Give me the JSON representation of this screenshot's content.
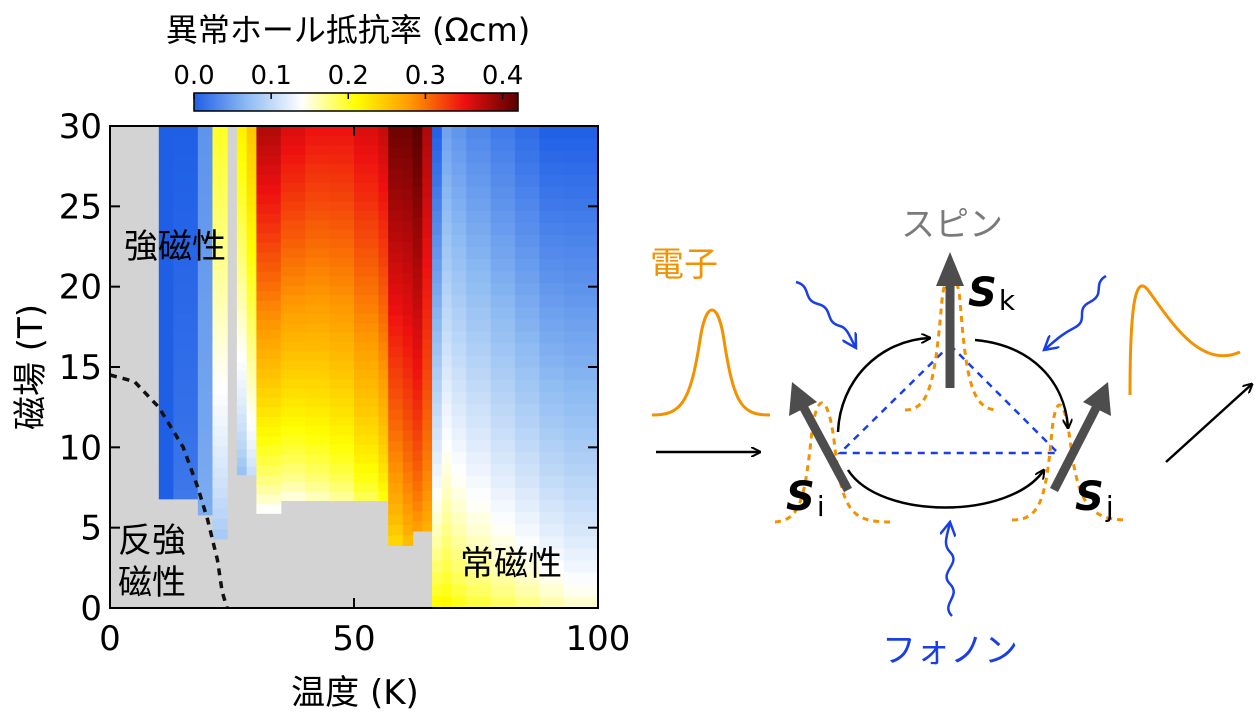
{
  "chart_data": [
    {
      "type": "heatmap",
      "colorbar": {
        "title": "異常ホール抵抗率 (Ωcm)",
        "ticks": [
          "0.0",
          "0.1",
          "0.2",
          "0.3",
          "0.4"
        ],
        "range": [
          0.0,
          0.42
        ],
        "colors": [
          "#1f5fe6",
          "#8fbcf2",
          "#ffffff",
          "#ffff00",
          "#ff9a00",
          "#ee1010",
          "#5a0000"
        ]
      },
      "xlabel": "温度 (K)",
      "ylabel": "磁場 (T)",
      "xlim": [
        0,
        100
      ],
      "ylim": [
        0,
        30
      ],
      "xticks": [
        "0",
        "50",
        "100"
      ],
      "yticks": [
        "0",
        "5",
        "10",
        "15",
        "20",
        "25",
        "30"
      ],
      "masked_color": "#d3d3d3",
      "columns": [
        {
          "t0": 0,
          "t1": 10,
          "hmin": 30,
          "v": [
            0,
            0
          ]
        },
        {
          "t0": 10,
          "t1": 13,
          "hmin": 6.8,
          "v": [
            0.0,
            0.0
          ]
        },
        {
          "t0": 13,
          "t1": 18,
          "hmin": 6.8,
          "v": [
            0.0,
            0.02
          ]
        },
        {
          "t0": 18,
          "t1": 21,
          "hmin": 5.8,
          "v": [
            0.04,
            0.06
          ]
        },
        {
          "t0": 21,
          "t1": 24,
          "hmin": 4.3,
          "v": [
            0.2,
            0.08
          ]
        },
        {
          "t0": 24,
          "t1": 26,
          "hmin": 30,
          "v": [
            0,
            0
          ]
        },
        {
          "t0": 26,
          "t1": 28,
          "hmin": 8.3,
          "v": [
            0.22,
            0.07
          ]
        },
        {
          "t0": 28,
          "t1": 30,
          "hmin": 8.3,
          "v": [
            0.25,
            0.1
          ]
        },
        {
          "t0": 30,
          "t1": 35,
          "hmin": 5.9,
          "v": [
            0.38,
            0.13
          ]
        },
        {
          "t0": 35,
          "t1": 40,
          "hmin": 6.7,
          "v": [
            0.36,
            0.14
          ]
        },
        {
          "t0": 40,
          "t1": 45,
          "hmin": 6.7,
          "v": [
            0.35,
            0.15
          ]
        },
        {
          "t0": 45,
          "t1": 50,
          "hmin": 6.7,
          "v": [
            0.35,
            0.16
          ]
        },
        {
          "t0": 50,
          "t1": 55,
          "hmin": 6.7,
          "v": [
            0.36,
            0.18
          ]
        },
        {
          "t0": 55,
          "t1": 57,
          "hmin": 6.7,
          "v": [
            0.37,
            0.2
          ]
        },
        {
          "t0": 57,
          "t1": 60,
          "hmin": 3.9,
          "v": [
            0.41,
            0.23
          ]
        },
        {
          "t0": 60,
          "t1": 62,
          "hmin": 3.9,
          "v": [
            0.41,
            0.25
          ]
        },
        {
          "t0": 62,
          "t1": 64,
          "hmin": 4.8,
          "v": [
            0.42,
            0.27
          ]
        },
        {
          "t0": 64,
          "t1": 66,
          "hmin": 4.8,
          "v": [
            0.38,
            0.26
          ]
        },
        {
          "t0": 66,
          "t1": 68,
          "hmin": 0,
          "v": [
            0.0,
            0.22
          ]
        },
        {
          "t0": 68,
          "t1": 70,
          "hmin": 0,
          "v": [
            0.05,
            0.22
          ]
        },
        {
          "t0": 70,
          "t1": 73,
          "hmin": 0,
          "v": [
            0.04,
            0.21
          ]
        },
        {
          "t0": 73,
          "t1": 78,
          "hmin": 0,
          "v": [
            0.03,
            0.2
          ]
        },
        {
          "t0": 78,
          "t1": 83,
          "hmin": 0,
          "v": [
            0.02,
            0.19
          ]
        },
        {
          "t0": 83,
          "t1": 88,
          "hmin": 0,
          "v": [
            0.01,
            0.18
          ]
        },
        {
          "t0": 88,
          "t1": 93,
          "hmin": 0,
          "v": [
            0.0,
            0.17
          ]
        },
        {
          "t0": 93,
          "t1": 100,
          "hmin": 0,
          "v": [
            0.0,
            0.16
          ]
        }
      ],
      "phase_boundary": [
        [
          0,
          14.5
        ],
        [
          5,
          14.1
        ],
        [
          10,
          12.5
        ],
        [
          15,
          10
        ],
        [
          18,
          7.5
        ],
        [
          20,
          5.5
        ],
        [
          22,
          3
        ],
        [
          23,
          1
        ],
        [
          24,
          0
        ]
      ],
      "annotations": {
        "ferro": "強磁性",
        "antiferro_1": "反強",
        "antiferro_2": "磁性",
        "para": "常磁性"
      }
    }
  ],
  "schematic": {
    "electron_label": "電子",
    "spin_label": "スピン",
    "phonon_label": "フォノン",
    "spins": [
      {
        "letter": "S",
        "sub": "k"
      },
      {
        "letter": "S",
        "sub": "i"
      },
      {
        "letter": "S",
        "sub": "j"
      }
    ],
    "colors": {
      "electron": "#f39200",
      "phonon": "#1a3fe6",
      "spin_arrow": "#4d4d4d",
      "spin_label": "#7a7a7a"
    }
  }
}
